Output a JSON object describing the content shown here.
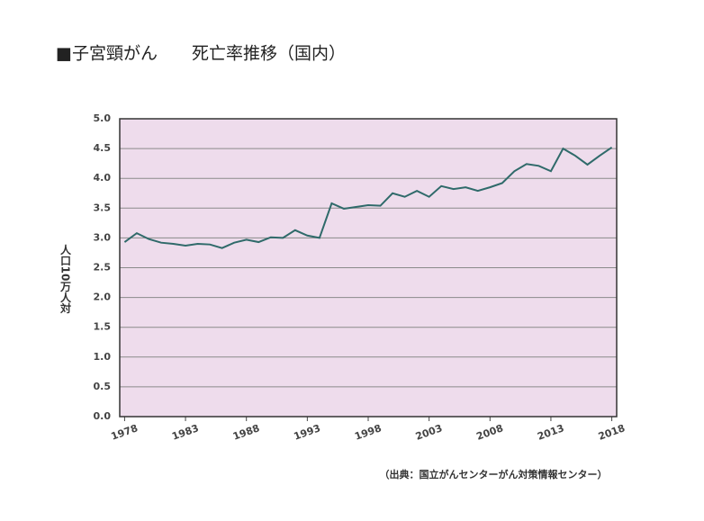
{
  "chart_data": {
    "type": "line",
    "title": "■子宮頸がん　　死亡率推移（国内）",
    "y_label": "人口10万人対",
    "source": "（出典：国立がんセンターがん対策情報センター）",
    "x": [
      1978,
      1979,
      1980,
      1981,
      1982,
      1983,
      1984,
      1985,
      1986,
      1987,
      1988,
      1989,
      1990,
      1991,
      1992,
      1993,
      1994,
      1995,
      1996,
      1997,
      1998,
      1999,
      2000,
      2001,
      2002,
      2003,
      2004,
      2005,
      2006,
      2007,
      2008,
      2009,
      2010,
      2011,
      2012,
      2013,
      2014,
      2015,
      2016,
      2017,
      2018
    ],
    "series": [
      {
        "color": "#2f6a6a",
        "values": [
          2.93,
          3.08,
          2.98,
          2.92,
          2.9,
          2.87,
          2.9,
          2.89,
          2.83,
          2.92,
          2.97,
          2.93,
          3.01,
          3.0,
          3.13,
          3.04,
          3.0,
          3.58,
          3.49,
          3.52,
          3.55,
          3.54,
          3.75,
          3.69,
          3.79,
          3.69,
          3.87,
          3.82,
          3.85,
          3.79,
          3.85,
          3.92,
          4.12,
          4.24,
          4.21,
          4.12,
          4.5,
          4.38,
          4.23,
          4.38,
          4.52
        ]
      }
    ],
    "xlim": [
      1977.6,
      2018.4
    ],
    "xticks": [
      1978,
      1983,
      1988,
      1993,
      1998,
      2003,
      2008,
      2013,
      2018
    ],
    "ylim": [
      0,
      5
    ],
    "yticks": [
      {
        "value": 0,
        "label": "0.0"
      },
      0.5,
      {
        "value": 1,
        "label": "1.0"
      },
      1.5,
      {
        "value": 2,
        "label": "2.0"
      },
      2.5,
      {
        "value": 3,
        "label": "3.0"
      },
      3.5,
      {
        "value": 4,
        "label": "4.0"
      },
      4.5,
      {
        "value": 5,
        "label": "5.0"
      }
    ],
    "grid": true,
    "plot_background": "#eedcec"
  }
}
